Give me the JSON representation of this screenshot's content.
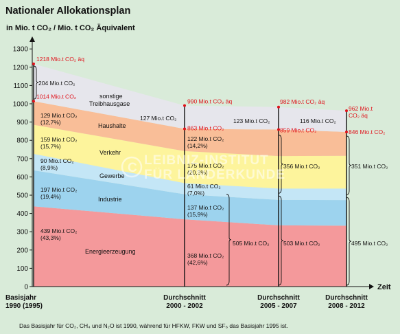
{
  "title": "Nationaler Allokationsplan",
  "footnote": "Das Basisjahr für CO₂, CH₄ und N₂O ist 1990, während für HFKW, FKW und SF₆ das Basisjahr 1995 ist.",
  "watermark": [
    "LEIBNIZ-INSTITUT",
    "FÜR LÄNDERKUNDE"
  ],
  "colors": {
    "sonstige": "#e6e6ec",
    "haushalte": "#f9be98",
    "verkehr": "#fdf49c",
    "gewerbe": "#c4e6f6",
    "industrie": "#9dd3ee",
    "energie": "#f4999b",
    "red": "#e0121b",
    "background": "#d9ebd9"
  },
  "chart_data": {
    "type": "area",
    "title": "Nationaler Allokationsplan",
    "ylabel": "in Mio. t CO₂ / Mio. t CO₂ Äquivalent",
    "xlabel": "Zeit",
    "ylim": [
      0,
      1300
    ],
    "yticks": [
      0,
      100,
      200,
      300,
      400,
      500,
      600,
      700,
      800,
      900,
      1000,
      1100,
      1200,
      1300
    ],
    "categories": [
      [
        "Basisjahr",
        "1990 (1995)"
      ],
      [
        "Durchschnitt",
        "2000 - 2002"
      ],
      [
        "Durchschnitt",
        "2005 - 2007"
      ],
      [
        "Durchschnitt",
        "2008 - 2012"
      ]
    ],
    "stack_order": [
      "energie",
      "industrie",
      "gewerbe",
      "verkehr",
      "haushalte",
      "sonstige"
    ],
    "series": [
      {
        "key": "energie",
        "name": "Energieerzeugung",
        "values": [
          439,
          368,
          335,
          333
        ]
      },
      {
        "key": "industrie",
        "name": "Industrie",
        "values": [
          197,
          137,
          139,
          140
        ]
      },
      {
        "key": "gewerbe",
        "name": "Gewerbe",
        "values": [
          90,
          61,
          62,
          63
        ]
      },
      {
        "key": "verkehr",
        "name": "Verkehr",
        "values": [
          159,
          175,
          178,
          179
        ]
      },
      {
        "key": "haushalte",
        "name": "Haushalte",
        "values": [
          129,
          122,
          145,
          131
        ]
      },
      {
        "key": "sonstige",
        "name": "sonstige Treibhausgase",
        "values": [
          204,
          127,
          123,
          116
        ]
      }
    ],
    "annotations": {
      "col0": {
        "top_red": "1218 Mio.t CO₂ äq",
        "co2_red": "1014 Mio.t CO₂",
        "sonstige": "204 Mio.t CO₂",
        "haushalte": [
          "129 Mio.t CO₂",
          "(12,7%)"
        ],
        "verkehr": [
          "159 Mio.t CO₂",
          "(15,7%)"
        ],
        "gewerbe": [
          "90 Mio.t CO₂",
          "(8,9%)"
        ],
        "industrie": [
          "197 Mio.t CO₂",
          "(19,4%)"
        ],
        "energie": [
          "439 Mio.t CO₂",
          "(43,3%)"
        ]
      },
      "col1": {
        "top_red": "990 Mio.t CO₂ äq",
        "co2_red": "863 Mio.t CO₂",
        "sonstige": "127 Mio.t CO₂",
        "haushalte": [
          "122 Mio.t CO₂",
          "(14,2%)"
        ],
        "verkehr": [
          "175 Mio.t CO₂",
          "(20,3%)"
        ],
        "gewerbe": [
          "61 Mio.t CO₂",
          "(7,0%)"
        ],
        "industrie": [
          "137 Mio.t CO₂",
          "(15,9%)"
        ],
        "energie": [
          "368 Mio.t CO₂",
          "(42,6%)"
        ],
        "bracket": "505 Mio.t CO₂"
      },
      "col2": {
        "top_red": "982 Mio.t CO₂ äq",
        "co2_red": "859 Mio.t CO₂",
        "sonstige": "123 Mio.t CO₂",
        "bracket_top": "356 Mio.t CO₂",
        "bracket_bottom": "503 Mio.t CO₂"
      },
      "col3": {
        "top_red": [
          "962 Mio.t",
          "CO₂ äq"
        ],
        "co2_red": "846 Mio.t CO₂",
        "sonstige": "116 Mio.t CO₂",
        "bracket_top": "351 Mio.t CO₂",
        "bracket_bottom": "495 Mio.t CO₂"
      }
    }
  }
}
